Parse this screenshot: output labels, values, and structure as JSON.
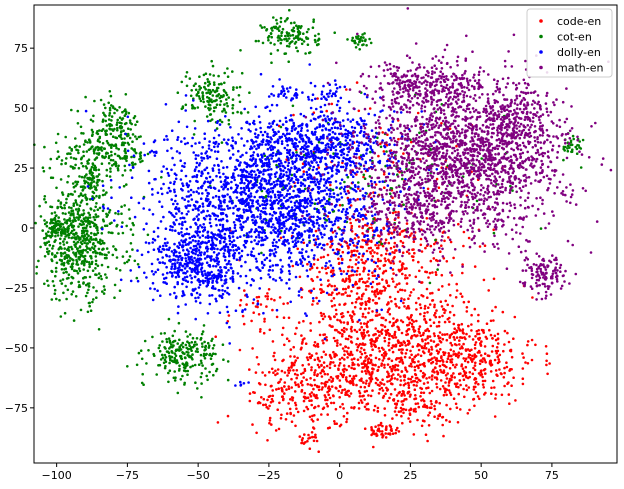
{
  "chart_data": {
    "type": "scatter",
    "title": "",
    "xlabel": "",
    "ylabel": "",
    "xlim": [
      -108,
      98
    ],
    "ylim": [
      -98,
      93
    ],
    "xticks": [
      -100,
      -75,
      -50,
      -25,
      0,
      25,
      50,
      75
    ],
    "yticks": [
      -75,
      -50,
      -25,
      0,
      25,
      50,
      75
    ],
    "xtick_labels": [
      "−100",
      "−75",
      "−50",
      "−25",
      "0",
      "25",
      "50",
      "75"
    ],
    "ytick_labels": [
      "−75",
      "−50",
      "−25",
      "0",
      "25",
      "50",
      "75"
    ],
    "grid": false,
    "legend_position": "top-right",
    "series": [
      {
        "name": "code-en",
        "color": "#ff0000",
        "clusters": [
          {
            "cx": 5,
            "cy": -20,
            "sx": 10,
            "sy": 14,
            "n": 260
          },
          {
            "cx": 20,
            "cy": -45,
            "sx": 16,
            "sy": 12,
            "n": 520
          },
          {
            "cx": 42,
            "cy": -55,
            "sx": 14,
            "sy": 9,
            "n": 420
          },
          {
            "cx": 2,
            "cy": -60,
            "sx": 14,
            "sy": 10,
            "n": 340
          },
          {
            "cx": -15,
            "cy": -70,
            "sx": 9,
            "sy": 7,
            "n": 150
          },
          {
            "cx": 25,
            "cy": -72,
            "sx": 8,
            "sy": 6,
            "n": 140
          },
          {
            "cx": 15,
            "cy": -85,
            "sx": 3,
            "sy": 2,
            "n": 40
          },
          {
            "cx": -10,
            "cy": -88,
            "sx": 2,
            "sy": 2,
            "n": 20
          },
          {
            "cx": 20,
            "cy": -10,
            "sx": 12,
            "sy": 8,
            "n": 180
          },
          {
            "cx": -30,
            "cy": -35,
            "sx": 8,
            "sy": 6,
            "n": 40
          },
          {
            "cx": 15,
            "cy": 25,
            "sx": 20,
            "sy": 15,
            "n": 120
          }
        ]
      },
      {
        "name": "cot-en",
        "color": "#008000",
        "clusters": [
          {
            "cx": -92,
            "cy": -5,
            "sx": 8,
            "sy": 12,
            "n": 650
          },
          {
            "cx": -84,
            "cy": 30,
            "sx": 9,
            "sy": 5,
            "n": 200
          },
          {
            "cx": -80,
            "cy": 43,
            "sx": 5,
            "sy": 5,
            "n": 120
          },
          {
            "cx": -55,
            "cy": -53,
            "sx": 6,
            "sy": 5,
            "n": 220
          },
          {
            "cx": -45,
            "cy": 55,
            "sx": 5,
            "sy": 6,
            "n": 160
          },
          {
            "cx": -17,
            "cy": 80,
            "sx": 5,
            "sy": 4,
            "n": 130
          },
          {
            "cx": -100,
            "cy": 0,
            "sx": 2,
            "sy": 2,
            "n": 60
          },
          {
            "cx": -88,
            "cy": 20,
            "sx": 2,
            "sy": 2,
            "n": 40
          },
          {
            "cx": 7,
            "cy": 78,
            "sx": 2,
            "sy": 1.5,
            "n": 30
          },
          {
            "cx": 82,
            "cy": 34,
            "sx": 2,
            "sy": 2,
            "n": 30
          },
          {
            "cx": 20,
            "cy": 20,
            "sx": 20,
            "sy": 15,
            "n": 100
          },
          {
            "cx": -15,
            "cy": 15,
            "sx": 10,
            "sy": 10,
            "n": 60
          }
        ]
      },
      {
        "name": "dolly-en",
        "color": "#0000ff",
        "clusters": [
          {
            "cx": -25,
            "cy": 12,
            "sx": 20,
            "sy": 17,
            "n": 2000
          },
          {
            "cx": -50,
            "cy": -15,
            "sx": 8,
            "sy": 8,
            "n": 450
          },
          {
            "cx": -5,
            "cy": 35,
            "sx": 12,
            "sy": 7,
            "n": 400
          },
          {
            "cx": -18,
            "cy": 57,
            "sx": 3,
            "sy": 2,
            "n": 30
          },
          {
            "cx": -3,
            "cy": 57,
            "sx": 2,
            "sy": 2,
            "n": 25
          },
          {
            "cx": -35,
            "cy": -65,
            "sx": 1,
            "sy": 1,
            "n": 6
          }
        ]
      },
      {
        "name": "math-en",
        "color": "#800080",
        "clusters": [
          {
            "cx": 45,
            "cy": 30,
            "sx": 18,
            "sy": 16,
            "n": 1800
          },
          {
            "cx": 30,
            "cy": 60,
            "sx": 10,
            "sy": 5,
            "n": 250
          },
          {
            "cx": 72,
            "cy": -20,
            "sx": 4,
            "sy": 4,
            "n": 120
          },
          {
            "cx": 62,
            "cy": 45,
            "sx": 6,
            "sy": 8,
            "n": 200
          },
          {
            "cx": 25,
            "cy": 5,
            "sx": 12,
            "sy": 8,
            "n": 200
          }
        ]
      }
    ]
  }
}
